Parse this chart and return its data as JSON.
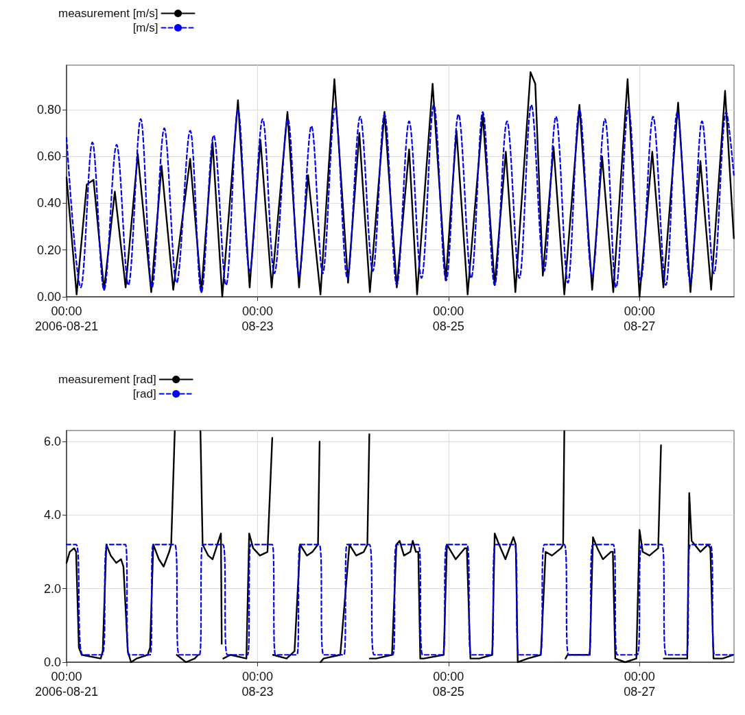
{
  "chart_data": [
    {
      "type": "line",
      "legend": "top left",
      "grid": true,
      "marker": "none",
      "xlim": [
        "2006-08-21T00:00",
        "2006-08-27T23:45"
      ],
      "xticks": [
        {
          "value": "2006-08-21T00:00",
          "label": "00:00\n2006-08-21"
        },
        {
          "value": "2006-08-23T00:00",
          "label": "00:00\n08-23"
        },
        {
          "value": "2006-08-25T00:00",
          "label": "00:00\n08-25"
        },
        {
          "value": "2006-08-27T00:00",
          "label": "00:00\n08-27"
        }
      ],
      "ylim": [
        0,
        0.99
      ],
      "yticks": [
        {
          "value": 0,
          "label": "0.00"
        },
        {
          "value": 0.2,
          "label": "0.20"
        },
        {
          "value": 0.4,
          "label": "0.40"
        },
        {
          "value": 0.6,
          "label": "0.60"
        },
        {
          "value": 0.8,
          "label": "0.80"
        }
      ],
      "series": [
        {
          "name": "measurement [m/s]",
          "color": "#000000",
          "line_style": "solid",
          "x": [
            "2006-08-21T00:00",
            "2006-08-21T02:32",
            "2006-08-21T05:05",
            "2006-08-21T06:47",
            "2006-08-21T09:26",
            "2006-08-21T12:08",
            "2006-08-21T14:51",
            "2006-08-21T17:54",
            "2006-08-21T21:17",
            "2006-08-21T23:53",
            "2006-08-22T02:49",
            "2006-08-22T07:04",
            "2006-08-22T09:53",
            "2006-08-22T12:42",
            "2006-08-22T15:08",
            "2006-08-22T19:05",
            "2006-08-22T22:01",
            "2006-08-23T00:44",
            "2006-08-23T03:33",
            "2006-08-23T07:31",
            "2006-08-23T10:26",
            "2006-08-23T12:42",
            "2006-08-23T15:49",
            "2006-08-23T19:19",
            "2006-08-23T22:45",
            "2006-08-24T01:35",
            "2006-08-24T04:14",
            "2006-08-24T07:54",
            "2006-08-24T11:00",
            "2006-08-24T14:06",
            "2006-08-24T16:06",
            "2006-08-24T20:00",
            "2006-08-24T23:18",
            "2006-08-25T02:00",
            "2006-08-25T04:48",
            "2006-08-25T08:36",
            "2006-08-25T11:36",
            "2006-08-25T14:24",
            "2006-08-25T16:48",
            "2006-08-25T20:36",
            "2006-08-25T21:48",
            "2006-08-25T23:42",
            "2006-08-26T02:24",
            "2006-08-26T05:06",
            "2006-08-26T08:54",
            "2006-08-26T12:06",
            "2006-08-26T14:36",
            "2006-08-26T17:24",
            "2006-08-26T21:00",
            "2006-08-27T00:00",
            "2006-08-27T03:12",
            "2006-08-27T06:00",
            "2006-08-27T09:42",
            "2006-08-27T12:48",
            "2006-08-27T15:18",
            "2006-08-27T18:00",
            "2006-08-27T21:30",
            "2006-08-27T23:42"
          ],
          "values": [
            0.51,
            0.01,
            0.48,
            0.5,
            0.03,
            0.45,
            0.04,
            0.61,
            0.02,
            0.56,
            0.03,
            0.59,
            0.02,
            0.66,
            0.0,
            0.84,
            0.04,
            0.67,
            0.04,
            0.79,
            0.04,
            0.52,
            0.01,
            0.93,
            0.06,
            0.7,
            0.02,
            0.79,
            0.04,
            0.63,
            0.01,
            0.91,
            0.07,
            0.71,
            0.01,
            0.78,
            0.05,
            0.62,
            0.02,
            0.96,
            0.91,
            0.09,
            0.64,
            0.01,
            0.82,
            0.03,
            0.6,
            0.02,
            0.93,
            0.0,
            0.62,
            0.04,
            0.83,
            0.02,
            0.58,
            0.03,
            0.88,
            0.25
          ]
        },
        {
          "name": "[m/s]",
          "color": "#0000ff",
          "line_style": "dashed",
          "x": [
            "2006-08-21T00:00",
            "2006-08-21T03:34",
            "2006-08-21T06:29",
            "2006-08-21T09:26",
            "2006-08-21T12:35",
            "2006-08-21T15:32",
            "2006-08-21T18:38",
            "2006-08-21T21:28",
            "2006-08-22T00:34",
            "2006-08-22T03:40",
            "2006-08-22T07:04",
            "2006-08-22T09:53",
            "2006-08-22T12:59",
            "2006-08-22T16:05",
            "2006-08-22T19:05",
            "2006-08-22T22:01",
            "2006-08-23T01:17",
            "2006-08-23T04:14",
            "2006-08-23T07:37",
            "2006-08-23T10:26",
            "2006-08-23T13:33",
            "2006-08-23T16:22",
            "2006-08-23T19:29",
            "2006-08-23T22:35",
            "2006-08-24T01:48",
            "2006-08-24T04:58",
            "2006-08-24T07:54",
            "2006-08-24T11:00",
            "2006-08-24T14:06",
            "2006-08-24T17:12",
            "2006-08-24T20:18",
            "2006-08-24T23:24",
            "2006-08-25T02:30",
            "2006-08-25T05:42",
            "2006-08-25T08:36",
            "2006-08-25T11:36",
            "2006-08-25T14:42",
            "2006-08-25T17:48",
            "2006-08-25T20:48",
            "2006-08-26T00:00",
            "2006-08-26T03:00",
            "2006-08-26T06:00",
            "2006-08-26T08:54",
            "2006-08-26T12:06",
            "2006-08-26T15:18",
            "2006-08-26T18:06",
            "2006-08-26T21:12",
            "2006-08-27T00:18",
            "2006-08-27T03:24",
            "2006-08-27T06:36",
            "2006-08-27T09:30",
            "2006-08-27T12:48",
            "2006-08-27T15:42",
            "2006-08-27T18:42",
            "2006-08-27T21:48",
            "2006-08-27T23:42"
          ],
          "values": [
            0.68,
            0.04,
            0.66,
            0.03,
            0.65,
            0.05,
            0.76,
            0.04,
            0.72,
            0.06,
            0.71,
            0.02,
            0.69,
            0.05,
            0.8,
            0.11,
            0.76,
            0.1,
            0.76,
            0.09,
            0.73,
            0.1,
            0.81,
            0.08,
            0.77,
            0.11,
            0.78,
            0.05,
            0.75,
            0.08,
            0.82,
            0.07,
            0.78,
            0.08,
            0.79,
            0.05,
            0.75,
            0.08,
            0.82,
            0.11,
            0.77,
            0.06,
            0.8,
            0.09,
            0.76,
            0.04,
            0.81,
            0.07,
            0.77,
            0.05,
            0.79,
            0.06,
            0.75,
            0.1,
            0.79,
            0.52
          ]
        }
      ]
    },
    {
      "type": "line",
      "legend": "top left",
      "grid": true,
      "marker": "none",
      "xlim": [
        "2006-08-21T00:00",
        "2006-08-27T23:45"
      ],
      "xticks": [
        {
          "value": "2006-08-21T00:00",
          "label": "00:00\n2006-08-21"
        },
        {
          "value": "2006-08-23T00:00",
          "label": "00:00\n08-23"
        },
        {
          "value": "2006-08-25T00:00",
          "label": "00:00\n08-25"
        },
        {
          "value": "2006-08-27T00:00",
          "label": "00:00\n08-27"
        }
      ],
      "ylim": [
        0,
        6.3
      ],
      "yticks": [
        {
          "value": 0,
          "label": "0.0"
        },
        {
          "value": 2,
          "label": "2.0"
        },
        {
          "value": 4,
          "label": "4.0"
        },
        {
          "value": 6,
          "label": "6.0"
        }
      ],
      "series": [
        {
          "name": "measurement [rad]",
          "color": "#000000",
          "line_style": "solid",
          "x": [
            "2006-08-21T00:00",
            "2006-08-21T00:48",
            "2006-08-21T01:54",
            "2006-08-21T02:24",
            "2006-08-21T03:06",
            "2006-08-21T03:48",
            "2006-08-21T08:36",
            "2006-08-21T09:06",
            "2006-08-21T10:00",
            "2006-08-21T11:06",
            "2006-08-21T12:30",
            "2006-08-21T13:42",
            "2006-08-21T14:18",
            "2006-08-21T15:24",
            "2006-08-21T16:12",
            "2006-08-21T17:36",
            "2006-08-21T20:24",
            "2006-08-21T21:00",
            "2006-08-21T21:48",
            "2006-08-21T23:12",
            "2006-08-22T00:24",
            "2006-08-22T01:48",
            "2006-08-22T02:18",
            "2006-08-22T03:12",
            "2006-08-22T03:20",
            "2006-08-22T03:42",
            "2006-08-22T06:00",
            "2006-08-22T08:12",
            "2006-08-22T09:06",
            "2006-08-22T09:20",
            "2006-08-22T09:39",
            "2006-08-22T10:12",
            "2006-08-22T11:36",
            "2006-08-22T12:42",
            "2006-08-22T13:54",
            "2006-08-22T14:48",
            "2006-08-22T15:00",
            "2006-08-22T15:10",
            "2006-08-22T15:24",
            "2006-08-22T17:12",
            "2006-08-22T21:12",
            "2006-08-22T21:54",
            "2006-08-22T22:54",
            "2006-08-23T00:36",
            "2006-08-23T02:30",
            "2006-08-23T03:42",
            "2006-08-23T03:48",
            "2006-08-23T03:54",
            "2006-08-23T07:18",
            "2006-08-23T09:18",
            "2006-08-23T10:42",
            "2006-08-23T12:24",
            "2006-08-23T13:48",
            "2006-08-23T15:12",
            "2006-08-23T15:36",
            "2006-08-23T15:42",
            "2006-08-23T15:48",
            "2006-08-23T16:36",
            "2006-08-23T20:48",
            "2006-08-23T23:06",
            "2006-08-24T00:48",
            "2006-08-24T02:42",
            "2006-08-24T03:36",
            "2006-08-24T04:06",
            "2006-08-24T04:08",
            "2006-08-24T04:12",
            "2006-08-24T05:48",
            "2006-08-24T09:48",
            "2006-08-24T10:54",
            "2006-08-24T11:42",
            "2006-08-24T12:48",
            "2006-08-24T14:24",
            "2006-08-24T15:00",
            "2006-08-24T15:48",
            "2006-08-24T16:24",
            "2006-08-24T16:54",
            "2006-08-24T17:48",
            "2006-08-24T22:48",
            "2006-08-24T23:36",
            "2006-08-25T01:48",
            "2006-08-25T04:06",
            "2006-08-25T04:36",
            "2006-08-25T05:30",
            "2006-08-25T07:42",
            "2006-08-25T11:00",
            "2006-08-25T11:36",
            "2006-08-25T12:42",
            "2006-08-25T14:18",
            "2006-08-25T16:18",
            "2006-08-25T16:54",
            "2006-08-25T17:24",
            "2006-08-25T19:54",
            "2006-08-25T23:12",
            "2006-08-26T00:24",
            "2006-08-26T02:00",
            "2006-08-26T04:18",
            "2006-08-26T04:48",
            "2006-08-26T05:06",
            "2006-08-26T05:10",
            "2006-08-26T05:24",
            "2006-08-26T05:54",
            "2006-08-26T11:30",
            "2006-08-26T12:18",
            "2006-08-26T13:24",
            "2006-08-26T14:48",
            "2006-08-26T16:48",
            "2006-08-26T17:18",
            "2006-08-26T17:54",
            "2006-08-26T20:24",
            "2006-08-26T23:12",
            "2006-08-27T00:00",
            "2006-08-27T00:48",
            "2006-08-27T02:30",
            "2006-08-27T04:42",
            "2006-08-27T05:24",
            "2006-08-27T05:40",
            "2006-08-27T06:06",
            "2006-08-27T12:00",
            "2006-08-27T12:30",
            "2006-08-27T13:06",
            "2006-08-27T15:18",
            "2006-08-27T17:12",
            "2006-08-27T17:48",
            "2006-08-27T18:36",
            "2006-08-27T20:54",
            "2006-08-27T23:30"
          ],
          "values": [
            2.7,
            3.0,
            3.1,
            3.0,
            0.4,
            0.2,
            0.1,
            0.3,
            3.2,
            2.9,
            2.7,
            2.8,
            2.6,
            0.3,
            0.0,
            0.1,
            0.2,
            0.4,
            3.2,
            2.8,
            2.6,
            3.0,
            3.2,
            6.28,
            null,
            0.2,
            0.0,
            0.1,
            0.2,
            null,
            6.28,
            3.2,
            2.9,
            2.8,
            3.2,
            3.5,
            0.5,
            null,
            0.1,
            0.2,
            0.1,
            3.5,
            3.1,
            2.9,
            3.0,
            6.1,
            null,
            0.2,
            0.1,
            0.3,
            3.2,
            2.9,
            3.0,
            3.2,
            6.0,
            null,
            0.0,
            0.1,
            0.2,
            3.2,
            2.9,
            3.0,
            3.2,
            6.2,
            null,
            0.1,
            0.1,
            0.2,
            3.2,
            3.3,
            2.9,
            3.0,
            3.3,
            3.0,
            3.0,
            0.1,
            0.1,
            0.2,
            3.2,
            2.8,
            3.1,
            3.1,
            0.1,
            0.1,
            0.2,
            3.5,
            3.2,
            2.8,
            3.4,
            3.2,
            0.0,
            0.1,
            0.2,
            3.0,
            2.9,
            3.1,
            3.2,
            6.28,
            null,
            0.1,
            0.2,
            0.2,
            3.4,
            3.1,
            2.8,
            3.0,
            3.0,
            0.1,
            0.0,
            0.1,
            3.6,
            3.0,
            2.9,
            3.1,
            5.9,
            null,
            0.1,
            0.1,
            4.6,
            3.3,
            3.0,
            3.2,
            3.1,
            0.1,
            0.1,
            0.2
          ]
        },
        {
          "name": "[rad]",
          "color": "#0000ff",
          "line_style": "dashed",
          "x": [
            "2006-08-21T00:00",
            "2006-08-21T02:24",
            "2006-08-21T04:06",
            "2006-08-21T08:54",
            "2006-08-21T10:18",
            "2006-08-21T14:48",
            "2006-08-21T15:36",
            "2006-08-21T21:00",
            "2006-08-21T21:48",
            "2006-08-22T03:12",
            "2006-08-22T04:18",
            "2006-08-22T09:24",
            "2006-08-22T10:12",
            "2006-08-22T15:18",
            "2006-08-22T16:24",
            "2006-08-22T21:30",
            "2006-08-22T22:18",
            "2006-08-23T03:42",
            "2006-08-23T04:30",
            "2006-08-23T09:54",
            "2006-08-23T10:42",
            "2006-08-23T15:30",
            "2006-08-23T16:36",
            "2006-08-23T21:42",
            "2006-08-23T22:30",
            "2006-08-24T04:06",
            "2006-08-24T05:18",
            "2006-08-24T10:00",
            "2006-08-24T10:54",
            "2006-08-24T16:24",
            "2006-08-24T17:30",
            "2006-08-24T22:30",
            "2006-08-24T23:36",
            "2006-08-25T04:36",
            "2006-08-25T05:42",
            "2006-08-25T10:42",
            "2006-08-25T11:48",
            "2006-08-25T16:36",
            "2006-08-25T17:42",
            "2006-08-25T23:00",
            "2006-08-26T00:06",
            "2006-08-26T05:06",
            "2006-08-26T06:12",
            "2006-08-26T11:12",
            "2006-08-26T12:18",
            "2006-08-26T17:24",
            "2006-08-26T18:24",
            "2006-08-26T23:24",
            "2006-08-27T00:36",
            "2006-08-27T05:36",
            "2006-08-27T06:42",
            "2006-08-27T11:42",
            "2006-08-27T12:48",
            "2006-08-27T17:48",
            "2006-08-27T18:54",
            "2006-08-27T23:30"
          ],
          "values": [
            3.2,
            3.2,
            0.2,
            0.2,
            3.2,
            3.2,
            0.2,
            0.2,
            3.2,
            3.2,
            0.2,
            0.2,
            3.2,
            3.2,
            0.2,
            0.2,
            3.2,
            3.2,
            0.2,
            0.2,
            3.2,
            3.2,
            0.2,
            0.2,
            3.2,
            3.2,
            0.2,
            0.2,
            3.2,
            3.2,
            0.2,
            0.2,
            3.2,
            3.2,
            0.2,
            0.2,
            3.2,
            3.2,
            0.2,
            0.2,
            3.2,
            3.2,
            0.2,
            0.2,
            3.2,
            3.2,
            0.2,
            0.2,
            3.2,
            3.2,
            0.2,
            0.2,
            3.2,
            3.2,
            0.2,
            0.2
          ]
        }
      ]
    }
  ]
}
